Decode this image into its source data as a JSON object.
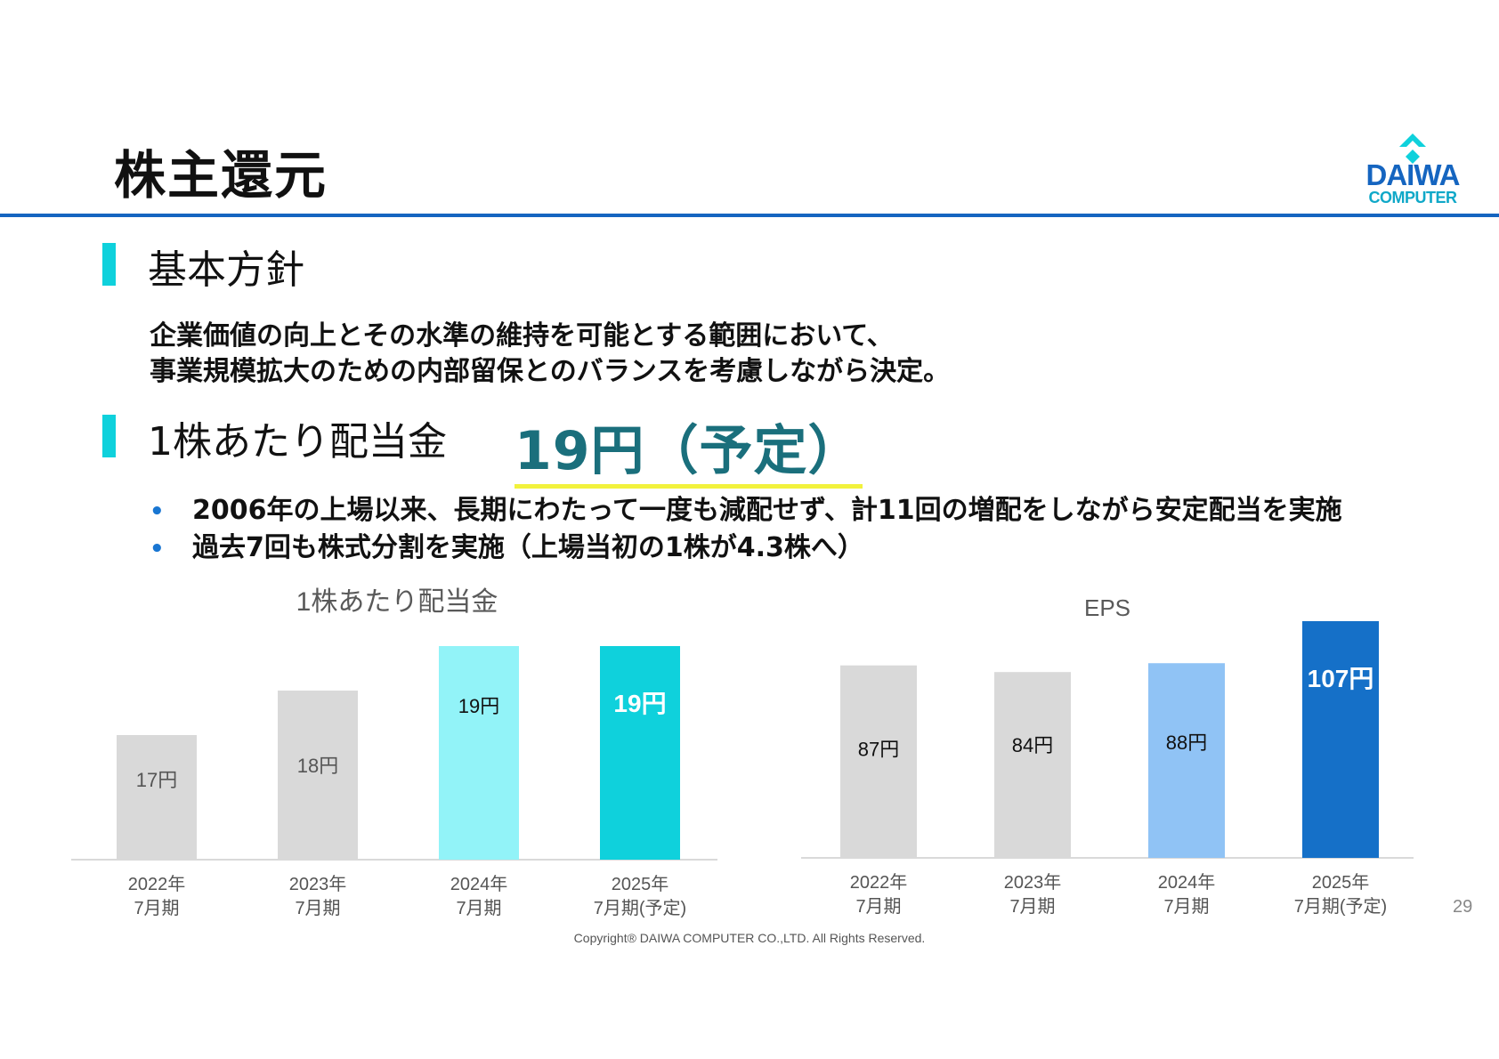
{
  "header": {
    "title": "株主還元",
    "logo_line1": "DAIWA",
    "logo_line2": "COMPUTER",
    "colors": {
      "rule": "#1565c0",
      "logo": "#1565c0",
      "logo_accent": "#0fd1dc"
    }
  },
  "policy_section": {
    "heading": "基本方針",
    "lines": [
      "企業価値の向上とその水準の維持を可能とする範囲において、",
      "事業規模拡大のための内部留保とのバランスを考慮しながら決定。"
    ]
  },
  "dividend_section": {
    "heading": "1株あたり配当金",
    "value": "19円（予定）",
    "bullets": [
      "2006年の上場以来、長期にわたって一度も減配せず、計11回の増配をしながら安定配当を実施",
      "過去7回も株式分割を実施（上場当初の1株が4.3株へ）"
    ]
  },
  "chart_data": [
    {
      "type": "bar",
      "title": "1株あたり配当金",
      "categories": [
        [
          "2022年",
          "7月期"
        ],
        [
          "2023年",
          "7月期"
        ],
        [
          "2024年",
          "7月期"
        ],
        [
          "2025年",
          "7月期(予定)"
        ]
      ],
      "values": [
        17,
        18,
        19,
        19
      ],
      "labels": [
        "17円",
        "18円",
        "19円",
        "19円"
      ],
      "colors": [
        "#d9d9d9",
        "#d9d9d9",
        "#92f3f8",
        "#0fd1dc"
      ],
      "ylim": [
        14.2,
        19
      ]
    },
    {
      "type": "bar",
      "title": "EPS",
      "categories": [
        [
          "2022年",
          "7月期"
        ],
        [
          "2023年",
          "7月期"
        ],
        [
          "2024年",
          "7月期"
        ],
        [
          "2025年",
          "7月期(予定)"
        ]
      ],
      "values": [
        87,
        84,
        88,
        107
      ],
      "labels": [
        "87円",
        "84円",
        "88円",
        "107円"
      ],
      "colors": [
        "#d9d9d9",
        "#d9d9d9",
        "#90c3f5",
        "#1570c8"
      ],
      "ylim": [
        0,
        107
      ]
    }
  ],
  "footer": {
    "copyright": "Copyright® DAIWA COMPUTER CO.,LTD. All Rights Reserved.",
    "page_number": "29"
  }
}
